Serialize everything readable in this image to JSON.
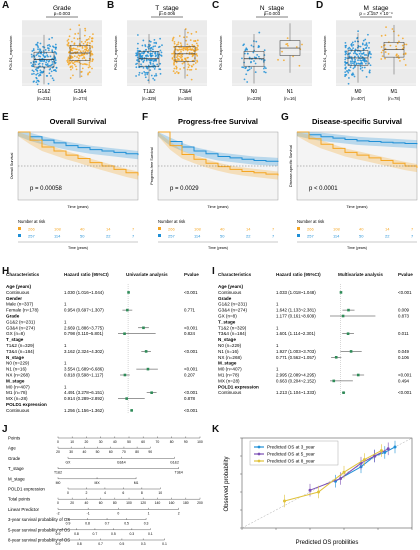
{
  "panels": {
    "A": {
      "letter": "A",
      "title": "Grade",
      "pvalue": "p=0.003",
      "ylabel": "POLD1_expression",
      "groups": [
        "G1&2",
        "G3&4"
      ],
      "ns": [
        "(n=231)",
        "(n=274)"
      ],
      "colors": [
        "#1f8fd6",
        "#f5a623"
      ]
    },
    "B": {
      "letter": "B",
      "title": "T_stage",
      "pvalue": "p=0.006",
      "ylabel": "POLD1_expression",
      "groups": [
        "T1&2",
        "T3&4"
      ],
      "ns": [
        "(n=329)",
        "(n=184)"
      ],
      "colors": [
        "#1f8fd6",
        "#f5a623"
      ]
    },
    "C": {
      "letter": "C",
      "title": "N_stage",
      "pvalue": "p=0.003",
      "ylabel": "POLD1_expression",
      "groups": [
        "N0",
        "N1"
      ],
      "ns": [
        "(n=229)",
        "(n=16)"
      ],
      "colors": [
        "#1f8fd6",
        "#f5a623"
      ]
    },
    "D": {
      "letter": "D",
      "title": "M_stage",
      "pvalue": "p = 2.157 × 10⁻⁴",
      "ylabel": "POLD1_expression",
      "groups": [
        "M0",
        "M1"
      ],
      "ns": [
        "(n=407)",
        "(n=78)"
      ],
      "colors": [
        "#1f8fd6",
        "#f5a623"
      ]
    }
  },
  "surv": {
    "E": {
      "letter": "E",
      "title": "Overall Survival",
      "pvalue": "p = 0.00058",
      "ylabel": "Overall Survival",
      "xlabel": "Time (years)",
      "risk_title": "Number at risk",
      "risk_rows": [
        [
          "266",
          "108",
          "40",
          "14",
          "7"
        ],
        [
          "257",
          "114",
          "50",
          "22",
          "7"
        ]
      ]
    },
    "F": {
      "letter": "F",
      "title": "Progress-free Survival",
      "pvalue": "p = 0.0029",
      "ylabel": "Progress-free Survival",
      "xlabel": "Time (years)",
      "risk_title": "Number at risk",
      "risk_rows": [
        [
          "266",
          "108",
          "40",
          "14",
          "7"
        ],
        [
          "257",
          "114",
          "50",
          "22",
          "7"
        ]
      ]
    },
    "G": {
      "letter": "G",
      "title": "Disease-specific Survival",
      "pvalue": "p < 0.0001",
      "ylabel": "Disease-specific Survival",
      "xlabel": "Time (years)",
      "risk_title": "Number at risk",
      "risk_rows": [
        [
          "266",
          "108",
          "40",
          "14",
          "7"
        ],
        [
          "257",
          "114",
          "50",
          "22",
          "7"
        ]
      ]
    }
  },
  "forest_H": {
    "letter": "H",
    "headers": {
      "c1": "Characteristics",
      "c2": "Hazard ratio (95%CI)",
      "c3": "Univariate analysis",
      "c4": "Pvalue"
    },
    "rows": [
      {
        "label": "Age (years)",
        "hr": "",
        "p": "",
        "bold": true
      },
      {
        "label": "Continuous",
        "hr": "1.030 (1.016~1.044)",
        "p": "<0.001",
        "bold": false
      },
      {
        "label": "Gender",
        "hr": "",
        "p": "",
        "bold": true
      },
      {
        "label": "Male (n=337)",
        "hr": "1",
        "p": "",
        "bold": false
      },
      {
        "label": "Female (n=178)",
        "hr": "0.954 (0.697~1.307)",
        "p": "0.771",
        "bold": false
      },
      {
        "label": "Grade",
        "hr": "",
        "p": "",
        "bold": true
      },
      {
        "label": "G1&2 (n=231)",
        "hr": "1",
        "p": "",
        "bold": false
      },
      {
        "label": "G3&4 (n=274)",
        "hr": "2.669 (1.886~3.775)",
        "p": "<0.001",
        "bold": false
      },
      {
        "label": "GX (n=8)",
        "hr": "0.798 (0.110~5.801)",
        "p": "0.824",
        "bold": false
      },
      {
        "label": "T_stage",
        "hr": "",
        "p": "",
        "bold": true
      },
      {
        "label": "T1&2 (n=329)",
        "hr": "1",
        "p": "",
        "bold": false
      },
      {
        "label": "T3&4 (n=184)",
        "hr": "3.162 (2.324~4.302)",
        "p": "<0.001",
        "bold": false
      },
      {
        "label": "N_stage",
        "hr": "",
        "p": "",
        "bold": true
      },
      {
        "label": "N0 (n=229)",
        "hr": "1",
        "p": "",
        "bold": false
      },
      {
        "label": "N1 (n=16)",
        "hr": "3.554 (1.689~6.686)",
        "p": "<0.001",
        "bold": false
      },
      {
        "label": "NX (n=268)",
        "hr": "0.818 (0.598~1.117)",
        "p": "0.207",
        "bold": false
      },
      {
        "label": "M_stage",
        "hr": "",
        "p": "",
        "bold": true
      },
      {
        "label": "M0 (n=407)",
        "hr": "1",
        "p": "",
        "bold": false
      },
      {
        "label": "M1 (n=78)",
        "hr": "4.491 (3.278~6.151)",
        "p": "<0.001",
        "bold": false
      },
      {
        "label": "MX (n=28)",
        "hr": "0.914 (0.289~2.892)",
        "p": "0.878",
        "bold": false
      },
      {
        "label": "POLD1 expression",
        "hr": "",
        "p": "",
        "bold": true
      },
      {
        "label": "Continuous",
        "hr": "1.256 (1.156~1.362)",
        "p": "<0.001",
        "bold": false
      }
    ]
  },
  "forest_I": {
    "letter": "I",
    "headers": {
      "c1": "Characteristics",
      "c2": "Hazard ratio (95%CI)",
      "c3": "Multivariate analysis",
      "c4": "Pvalue"
    },
    "rows": [
      {
        "label": "Age (years)",
        "hr": "",
        "p": "",
        "bold": true
      },
      {
        "label": "Continuous",
        "hr": "1.033 (1.018~1.048)",
        "p": "<0.001",
        "bold": false
      },
      {
        "label": "Grade",
        "hr": "",
        "p": "",
        "bold": true
      },
      {
        "label": "G1&2 (n=231)",
        "hr": "1",
        "p": "",
        "bold": false
      },
      {
        "label": "G3&4 (n=274)",
        "hr": "1.642 (1.133~2.381)",
        "p": "0.009",
        "bold": false
      },
      {
        "label": "GX (n=8)",
        "hr": "1.177 (0.161~8.609)",
        "p": "0.873",
        "bold": false
      },
      {
        "label": "T_stage",
        "hr": "",
        "p": "",
        "bold": true
      },
      {
        "label": "T1&2 (n=329)",
        "hr": "1",
        "p": "",
        "bold": false
      },
      {
        "label": "T3&4 (n=184)",
        "hr": "1.601 (1.114~2.301)",
        "p": "0.011",
        "bold": false
      },
      {
        "label": "N_stage",
        "hr": "",
        "p": "",
        "bold": true
      },
      {
        "label": "N0 (n=229)",
        "hr": "1",
        "p": "",
        "bold": false
      },
      {
        "label": "N1 (n=16)",
        "hr": "1.927 (1.003~3.703)",
        "p": "0.049",
        "bold": false
      },
      {
        "label": "NX (n=268)",
        "hr": "0.771 (0.562~1.057)",
        "p": "0.106",
        "bold": false
      },
      {
        "label": "M_stage",
        "hr": "",
        "p": "",
        "bold": true
      },
      {
        "label": "M0 (n=407)",
        "hr": "1",
        "p": "",
        "bold": false
      },
      {
        "label": "M1 (n=78)",
        "hr": "2.995 (2.089~4.295)",
        "p": "<0.001",
        "bold": false
      },
      {
        "label": "MX (n=28)",
        "hr": "0.663 (0.204~2.152)",
        "p": "0.494",
        "bold": false
      },
      {
        "label": "POLD1 expression",
        "hr": "",
        "p": "",
        "bold": true
      },
      {
        "label": "Continuous",
        "hr": "1.213 (1.104~1.333)",
        "p": "<0.001",
        "bold": false
      }
    ]
  },
  "nomogram": {
    "letter": "J",
    "rows": [
      {
        "label": "Points",
        "ticks": [
          "0",
          "10",
          "20",
          "30",
          "40",
          "50",
          "60",
          "70",
          "80",
          "90",
          "100"
        ]
      },
      {
        "label": "Age",
        "ticks": [
          "20",
          "30",
          "40",
          "50",
          "60",
          "70",
          "80",
          "90"
        ]
      },
      {
        "label": "Grade",
        "ticks": [
          "GX",
          "G3&4",
          "G1&2"
        ]
      },
      {
        "label": "T_stage",
        "ticks": [
          "T1&2",
          "T3&4"
        ]
      },
      {
        "label": "M_stage",
        "ticks": [
          "M0",
          "MX",
          "M1"
        ]
      },
      {
        "label": "POLD1 expression",
        "ticks": [
          "0",
          "2",
          "4",
          "6",
          "8",
          "10"
        ]
      },
      {
        "label": "Total points",
        "ticks": [
          "0",
          "20",
          "40",
          "60",
          "80",
          "100",
          "120",
          "140",
          "160",
          "180",
          "200"
        ]
      },
      {
        "label": "Linear Predictor",
        "ticks": [
          "-2",
          "-1",
          "0",
          "1",
          "2"
        ]
      },
      {
        "label": "3-year survival probability of OS",
        "ticks": [
          "0.9",
          "0.8",
          "0.7",
          "0.5",
          "0.3"
        ]
      },
      {
        "label": "5-year survival probability of OS",
        "ticks": [
          "0.9",
          "0.8",
          "0.7",
          "0.5",
          "0.3",
          "0.1"
        ]
      },
      {
        "label": "8-year survival probability of OS",
        "ticks": [
          "0.9",
          "0.8",
          "0.7",
          "0.5",
          "0.3",
          "0.1"
        ]
      }
    ]
  },
  "calibration": {
    "letter": "K",
    "xlabel": "Predicted OS probilities",
    "ylabel": "Observed probability",
    "legend": [
      {
        "name": "Predicted OS at 3_year",
        "color": "#1f8fd6"
      },
      {
        "name": "Predicted OS at 5_year",
        "color": "#7b4fb5"
      },
      {
        "name": "Predicted OS at 8_year",
        "color": "#e0c23a"
      }
    ]
  },
  "chart_data": [
    {
      "type": "scatter",
      "panel": "A",
      "title": "Grade",
      "ylabel": "POLD1_expression",
      "categories": [
        "G1&2",
        "G3&4"
      ],
      "medians": [
        3.2,
        4.0
      ]
    },
    {
      "type": "scatter",
      "panel": "B",
      "title": "T_stage",
      "ylabel": "POLD1_expression",
      "categories": [
        "T1&2",
        "T3&4"
      ],
      "medians": [
        3.3,
        3.9
      ]
    },
    {
      "type": "scatter",
      "panel": "C",
      "title": "N_stage",
      "ylabel": "POLD1_expression",
      "categories": [
        "N0",
        "N1"
      ],
      "medians": [
        3.3,
        4.6
      ]
    },
    {
      "type": "scatter",
      "panel": "D",
      "title": "M_stage",
      "ylabel": "POLD1_expression",
      "categories": [
        "M0",
        "M1"
      ],
      "medians": [
        3.4,
        4.4
      ]
    },
    {
      "type": "line",
      "panel": "E",
      "title": "Overall Survival",
      "xlabel": "Time (years)",
      "ylabel": "Overall Survival",
      "x": [
        0,
        1,
        2,
        3,
        4,
        5,
        6,
        7,
        8,
        9,
        10
      ],
      "series": [
        {
          "color": "#1f8fd6",
          "values": [
            1.0,
            0.93,
            0.88,
            0.84,
            0.8,
            0.77,
            0.74,
            0.72,
            0.7,
            0.68,
            0.66
          ]
        },
        {
          "color": "#f5a623",
          "values": [
            1.0,
            0.88,
            0.78,
            0.72,
            0.66,
            0.61,
            0.55,
            0.5,
            0.45,
            0.4,
            0.36
          ]
        }
      ]
    },
    {
      "type": "line",
      "panel": "F",
      "title": "Progress-free Survival",
      "xlabel": "Time (years)",
      "ylabel": "Progress-free Survival",
      "x": [
        0,
        1,
        2,
        3,
        4,
        5,
        6,
        7,
        8,
        9,
        10
      ],
      "series": [
        {
          "color": "#1f8fd6",
          "values": [
            1.0,
            0.86,
            0.78,
            0.72,
            0.68,
            0.64,
            0.62,
            0.6,
            0.58,
            0.57,
            0.56
          ]
        },
        {
          "color": "#f5a623",
          "values": [
            1.0,
            0.8,
            0.67,
            0.6,
            0.54,
            0.49,
            0.45,
            0.42,
            0.4,
            0.38,
            0.36
          ]
        }
      ]
    },
    {
      "type": "line",
      "panel": "G",
      "title": "Disease-specific Survival",
      "xlabel": "Time (years)",
      "ylabel": "Disease-specific Survival",
      "x": [
        0,
        1,
        2,
        3,
        4,
        5,
        6,
        7,
        8,
        9,
        10
      ],
      "series": [
        {
          "color": "#1f8fd6",
          "values": [
            1.0,
            0.96,
            0.93,
            0.91,
            0.89,
            0.87,
            0.86,
            0.85,
            0.84,
            0.83,
            0.82
          ]
        },
        {
          "color": "#f5a623",
          "values": [
            1.0,
            0.9,
            0.82,
            0.76,
            0.7,
            0.66,
            0.62,
            0.58,
            0.54,
            0.5,
            0.47
          ]
        }
      ]
    },
    {
      "type": "line",
      "panel": "K",
      "xlabel": "Predicted OS probilities",
      "ylabel": "Observed probability",
      "xlim": [
        0,
        1
      ],
      "ylim": [
        0,
        1
      ],
      "series": [
        {
          "name": "Predicted OS at 3_year",
          "color": "#1f8fd6",
          "x": [
            0.55,
            0.7,
            0.78,
            0.84,
            0.9
          ],
          "values": [
            0.52,
            0.68,
            0.8,
            0.84,
            0.9
          ]
        },
        {
          "name": "Predicted OS at 5_year",
          "color": "#7b4fb5",
          "x": [
            0.4,
            0.58,
            0.7,
            0.78,
            0.86
          ],
          "values": [
            0.42,
            0.55,
            0.72,
            0.8,
            0.88
          ]
        },
        {
          "name": "Predicted OS at 8_year",
          "color": "#e0c23a",
          "x": [
            0.25,
            0.45,
            0.6,
            0.72,
            0.82
          ],
          "values": [
            0.3,
            0.4,
            0.62,
            0.76,
            0.86
          ]
        }
      ]
    }
  ]
}
